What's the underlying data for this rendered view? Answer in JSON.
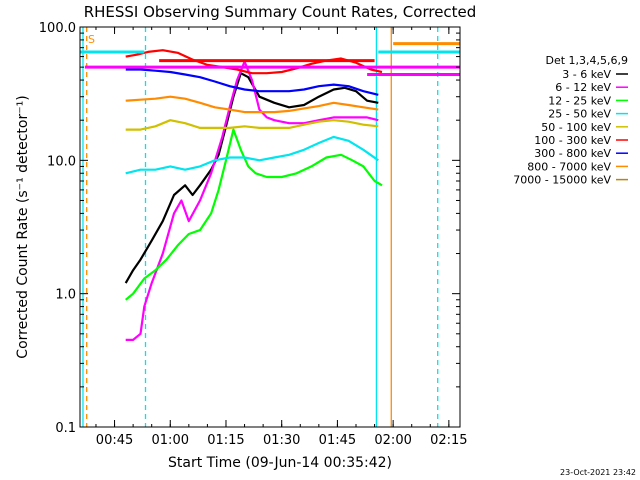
{
  "chart_data": {
    "type": "line",
    "title": "RHESSI Observing Summary Count Rates, Corrected",
    "xlabel": "Start Time (09-Jun-14 00:35:42)",
    "ylabel": "Corrected Count Rate (s⁻¹ detector⁻¹)",
    "yscale": "log",
    "ylim": [
      0.1,
      100
    ],
    "xlim": [
      "00:35:42",
      "02:18:00"
    ],
    "xticks": [
      "00:45",
      "01:00",
      "01:15",
      "01:30",
      "01:45",
      "02:00",
      "02:15"
    ],
    "yticks": [
      "0.1",
      "1.0",
      "10.0",
      "100.0"
    ],
    "legend_title": "Det 1,3,4,5,6,9",
    "legend_position": "right",
    "corner_flag": "S",
    "timestamp": "23-Oct-2021 23:42",
    "vertical_markers": [
      {
        "time": "00:36:30",
        "style": "solid",
        "color": "#00e5ee"
      },
      {
        "time": "00:37:30",
        "style": "dashed",
        "color": "#ff8c00"
      },
      {
        "time": "00:53:20",
        "style": "dashed",
        "color": "#00e5ee"
      },
      {
        "time": "01:55:30",
        "style": "solid",
        "color": "#00e5ee"
      },
      {
        "time": "01:59:30",
        "style": "solid",
        "color": "#ff8c00"
      },
      {
        "time": "02:12:00",
        "style": "dashed",
        "color": "#00e5ee"
      }
    ],
    "series": [
      {
        "name": "3 - 6 keV",
        "color": "#000000",
        "x": [
          "00:48",
          "00:50",
          "00:52",
          "00:55",
          "00:58",
          "01:01",
          "01:04",
          "01:06",
          "01:08",
          "01:11",
          "01:13",
          "01:15",
          "01:17",
          "01:19",
          "01:21",
          "01:24",
          "01:28",
          "01:32",
          "01:36",
          "01:40",
          "01:44",
          "01:47",
          "01:50",
          "01:53",
          "01:56"
        ],
        "y": [
          1.2,
          1.5,
          1.8,
          2.5,
          3.5,
          5.5,
          6.5,
          5.5,
          6.5,
          8.5,
          11,
          18,
          30,
          45,
          42,
          30,
          27,
          25,
          26,
          30,
          34,
          35,
          33,
          28,
          27
        ]
      },
      {
        "name": "6 - 12 keV",
        "color": "#ff00ff",
        "x": [
          "00:48",
          "00:50",
          "00:52",
          "00:53",
          "00:55",
          "00:58",
          "01:01",
          "01:03",
          "01:05",
          "01:08",
          "01:11",
          "01:14",
          "01:16",
          "01:18",
          "01:20",
          "01:22",
          "01:24",
          "01:26",
          "01:28",
          "01:32",
          "01:36",
          "01:40",
          "01:44",
          "01:47",
          "01:50",
          "01:53",
          "01:56"
        ],
        "y": [
          0.45,
          0.45,
          0.5,
          0.8,
          1.2,
          2.0,
          4.0,
          5.0,
          3.5,
          5.0,
          8.0,
          15,
          25,
          40,
          55,
          40,
          24,
          21,
          20,
          19,
          19,
          20,
          21,
          21,
          21,
          21,
          20
        ]
      },
      {
        "name": "12 - 25 keV",
        "color": "#00ff00",
        "x": [
          "00:48",
          "00:50",
          "00:53",
          "00:56",
          "00:59",
          "01:02",
          "01:05",
          "01:08",
          "01:11",
          "01:13",
          "01:15",
          "01:17",
          "01:19",
          "01:21",
          "01:23",
          "01:26",
          "01:30",
          "01:34",
          "01:38",
          "01:42",
          "01:46",
          "01:49",
          "01:52",
          "01:55",
          "01:57"
        ],
        "y": [
          0.9,
          1.0,
          1.3,
          1.5,
          1.8,
          2.3,
          2.8,
          3.0,
          4.0,
          6.0,
          10,
          17,
          12,
          9,
          8,
          7.5,
          7.5,
          8,
          9,
          10.5,
          11,
          10,
          9,
          7,
          6.5
        ]
      },
      {
        "name": "25 - 50 keV",
        "color": "#00e5ee",
        "x": [
          "00:48",
          "00:52",
          "00:56",
          "01:00",
          "01:04",
          "01:08",
          "01:12",
          "01:16",
          "01:20",
          "01:24",
          "01:28",
          "01:32",
          "01:36",
          "01:40",
          "01:44",
          "01:48",
          "01:52",
          "01:56"
        ],
        "y": [
          8.0,
          8.5,
          8.5,
          9.0,
          8.5,
          9.0,
          10,
          10.5,
          10.5,
          10,
          10.5,
          11,
          12,
          13.5,
          15,
          14,
          12,
          10
        ]
      },
      {
        "name": "50 - 100 keV",
        "color": "#d0c000",
        "x": [
          "00:48",
          "00:52",
          "00:56",
          "01:00",
          "01:04",
          "01:08",
          "01:12",
          "01:16",
          "01:20",
          "01:24",
          "01:28",
          "01:32",
          "01:36",
          "01:40",
          "01:44",
          "01:48",
          "01:52",
          "01:56"
        ],
        "y": [
          17,
          17,
          18,
          20,
          19,
          17.5,
          17.5,
          17.5,
          18,
          17.5,
          17.5,
          17.5,
          18.5,
          19.5,
          20,
          19.5,
          18.5,
          18
        ]
      },
      {
        "name": "100 - 300 keV",
        "color": "#ff0000",
        "x": [
          "00:48",
          "00:51",
          "00:54",
          "00:58",
          "01:02",
          "01:06",
          "01:10",
          "01:14",
          "01:18",
          "01:22",
          "01:26",
          "01:30",
          "01:34",
          "01:38",
          "01:42",
          "01:46",
          "01:50",
          "01:54",
          "01:57"
        ],
        "y": [
          60,
          62,
          65,
          67,
          64,
          57,
          52,
          50,
          48,
          45,
          45,
          46,
          49,
          53,
          56,
          58,
          54,
          48,
          46
        ]
      },
      {
        "name": "300 - 800 keV",
        "color": "#0000ff",
        "x": [
          "00:48",
          "00:52",
          "00:56",
          "01:00",
          "01:04",
          "01:08",
          "01:12",
          "01:16",
          "01:20",
          "01:24",
          "01:28",
          "01:32",
          "01:36",
          "01:40",
          "01:44",
          "01:48",
          "01:52",
          "01:56"
        ],
        "y": [
          48,
          48,
          47,
          46,
          44,
          42,
          39,
          36,
          34,
          33,
          33,
          33,
          34,
          36,
          37,
          36,
          33,
          31
        ]
      },
      {
        "name": "800 - 7000 keV",
        "color": "#ff8c00",
        "x": [
          "00:48",
          "00:52",
          "00:56",
          "01:00",
          "01:04",
          "01:08",
          "01:12",
          "01:16",
          "01:20",
          "01:24",
          "01:28",
          "01:32",
          "01:36",
          "01:40",
          "01:44",
          "01:48",
          "01:52",
          "01:56"
        ],
        "y": [
          28,
          28.5,
          29,
          30,
          29,
          27,
          25,
          24,
          23,
          23,
          23,
          23.5,
          24.5,
          25.5,
          27,
          26,
          25,
          24
        ]
      },
      {
        "name": "7000 - 15000 keV",
        "color": "#b8860b",
        "x": [],
        "y": []
      }
    ],
    "reference_lines": [
      {
        "color": "#ff00ff",
        "y": 50,
        "from": "00:37:00",
        "to": "02:18:00"
      },
      {
        "color": "#ff00ff",
        "y": 44,
        "from": "01:53:00",
        "to": "02:18:00"
      },
      {
        "color": "#ff0000",
        "y": 56,
        "from": "00:57:00",
        "to": "01:55:00"
      },
      {
        "color": "#00e5ee",
        "y": 65,
        "from": "00:35:42",
        "to": "00:53:00"
      },
      {
        "color": "#00e5ee",
        "y": 65,
        "from": "01:56:00",
        "to": "02:18:00"
      },
      {
        "color": "#ff8c00",
        "y": 75,
        "from": "02:00:00",
        "to": "02:18:00"
      }
    ]
  }
}
